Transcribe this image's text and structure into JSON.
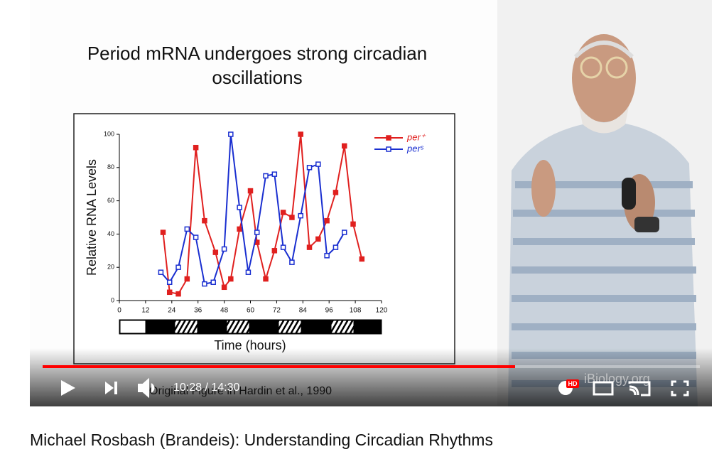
{
  "slide": {
    "title_line1": "Period mRNA undergoes strong circadian",
    "title_line2": "oscillations",
    "caption": "Original Figure in Hardin et al., 1990",
    "watermark": "iBiology.org"
  },
  "chart_data": {
    "type": "line",
    "ylabel": "Relative RNA Levels",
    "xlabel": "Time (hours)",
    "xlim": [
      0,
      120
    ],
    "xticks": [
      0,
      12,
      24,
      36,
      48,
      60,
      72,
      84,
      96,
      108,
      120
    ],
    "ylim": [
      0,
      100
    ],
    "yticks": [
      0,
      20,
      40,
      60,
      80,
      100
    ],
    "legend": "top-right",
    "series": [
      {
        "name": "per⁺",
        "color": "#e0201f",
        "marker": "filled-square",
        "x": [
          20,
          23,
          27,
          31,
          35,
          39,
          44,
          48,
          51,
          55,
          60,
          63,
          67,
          71,
          75,
          79,
          83,
          87,
          91,
          95,
          99,
          103,
          107,
          111
        ],
        "values": [
          41,
          5,
          4,
          13,
          92,
          48,
          29,
          8,
          13,
          43,
          66,
          35,
          13,
          30,
          53,
          50,
          100,
          32,
          37,
          48,
          65,
          93,
          46,
          25
        ]
      },
      {
        "name": "perˢ",
        "color": "#1a2fd0",
        "marker": "open-square",
        "x": [
          19,
          23,
          27,
          31,
          35,
          39,
          43,
          48,
          51,
          55,
          59,
          63,
          67,
          71,
          75,
          79,
          83,
          87,
          91,
          95,
          99,
          103
        ],
        "values": [
          17,
          11,
          20,
          43,
          38,
          10,
          11,
          31,
          100,
          56,
          17,
          41,
          75,
          76,
          32,
          23,
          51,
          80,
          82,
          27,
          32,
          41
        ]
      }
    ]
  },
  "player": {
    "time": "10:28 / 14:30",
    "hd": "HD"
  },
  "video_title": "Michael Rosbash (Brandeis): Understanding Circadian Rhythms"
}
